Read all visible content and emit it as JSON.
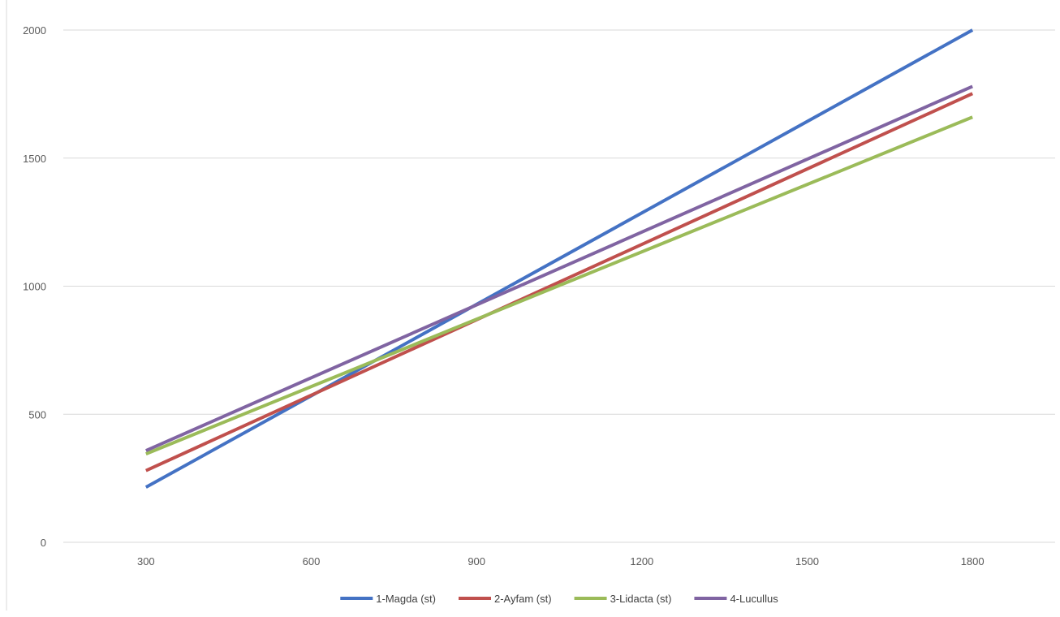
{
  "chart_data": {
    "type": "line",
    "title": "",
    "xlabel": "",
    "ylabel": "",
    "x": [
      300,
      1800
    ],
    "x_ticks": [
      "300",
      "600",
      "900",
      "1200",
      "1500",
      "1800"
    ],
    "y_ticks": [
      "0",
      "500",
      "1000",
      "1500",
      "2000"
    ],
    "xlim": [
      150,
      1950
    ],
    "ylim": [
      0,
      2000
    ],
    "grid": "horizontal",
    "legend_position": "bottom",
    "series": [
      {
        "name": "1-Magda (st)",
        "color": "#4472c4",
        "values": [
          215,
          2000
        ]
      },
      {
        "name": "2-Ayfam (st)",
        "color": "#c0504d",
        "values": [
          280,
          1752
        ]
      },
      {
        "name": "3-Lidacta (st)",
        "color": "#9bbb59",
        "values": [
          345,
          1660
        ]
      },
      {
        "name": "4-Lucullus",
        "color": "#8064a2",
        "values": [
          358,
          1780
        ]
      }
    ]
  }
}
